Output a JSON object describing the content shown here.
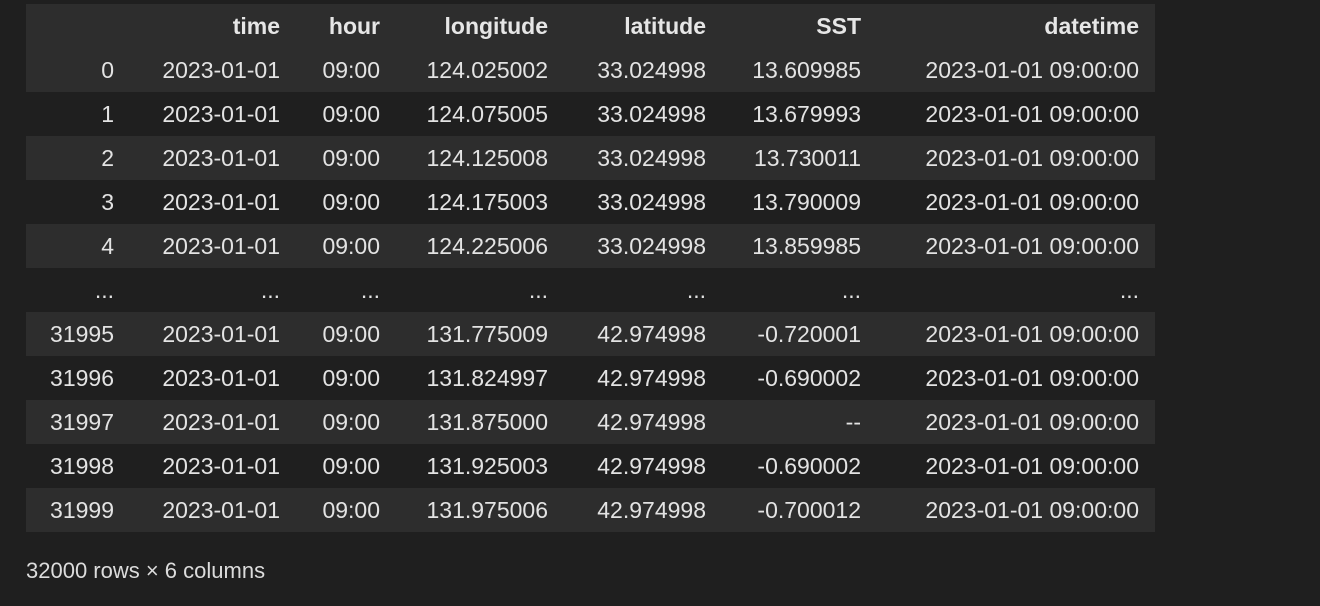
{
  "dataframe": {
    "index_header": "",
    "columns": [
      "time",
      "hour",
      "longitude",
      "latitude",
      "SST",
      "datetime"
    ],
    "rows": [
      {
        "index": "0",
        "cells": [
          "2023-01-01",
          "09:00",
          "124.025002",
          "33.024998",
          "13.609985",
          "2023-01-01 09:00:00"
        ]
      },
      {
        "index": "1",
        "cells": [
          "2023-01-01",
          "09:00",
          "124.075005",
          "33.024998",
          "13.679993",
          "2023-01-01 09:00:00"
        ]
      },
      {
        "index": "2",
        "cells": [
          "2023-01-01",
          "09:00",
          "124.125008",
          "33.024998",
          "13.730011",
          "2023-01-01 09:00:00"
        ]
      },
      {
        "index": "3",
        "cells": [
          "2023-01-01",
          "09:00",
          "124.175003",
          "33.024998",
          "13.790009",
          "2023-01-01 09:00:00"
        ]
      },
      {
        "index": "4",
        "cells": [
          "2023-01-01",
          "09:00",
          "124.225006",
          "33.024998",
          "13.859985",
          "2023-01-01 09:00:00"
        ]
      },
      {
        "index": "...",
        "cells": [
          "...",
          "...",
          "...",
          "...",
          "...",
          "..."
        ]
      },
      {
        "index": "31995",
        "cells": [
          "2023-01-01",
          "09:00",
          "131.775009",
          "42.974998",
          "-0.720001",
          "2023-01-01 09:00:00"
        ]
      },
      {
        "index": "31996",
        "cells": [
          "2023-01-01",
          "09:00",
          "131.824997",
          "42.974998",
          "-0.690002",
          "2023-01-01 09:00:00"
        ]
      },
      {
        "index": "31997",
        "cells": [
          "2023-01-01",
          "09:00",
          "131.875000",
          "42.974998",
          "--",
          "2023-01-01 09:00:00"
        ]
      },
      {
        "index": "31998",
        "cells": [
          "2023-01-01",
          "09:00",
          "131.925003",
          "42.974998",
          "-0.690002",
          "2023-01-01 09:00:00"
        ]
      },
      {
        "index": "31999",
        "cells": [
          "2023-01-01",
          "09:00",
          "131.975006",
          "42.974998",
          "-0.700012",
          "2023-01-01 09:00:00"
        ]
      }
    ],
    "shape_text": "32000 rows × 6 columns"
  }
}
